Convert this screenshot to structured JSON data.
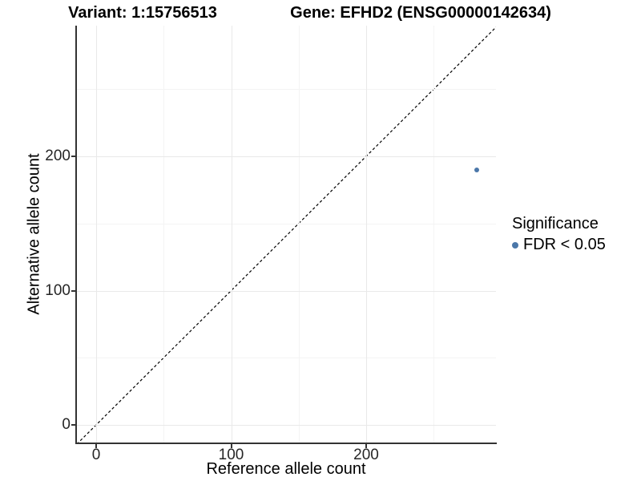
{
  "titles": {
    "variant": "Variant: 1:15756513",
    "gene": "Gene: EFHD2 (ENSG00000142634)"
  },
  "axes": {
    "x": {
      "label": "Reference allele count"
    },
    "y": {
      "label": "Alternative allele count"
    }
  },
  "legend": {
    "title": "Significance",
    "items": [
      {
        "label": "FDR < 0.05",
        "marker": "circle-icon",
        "color": "#4b77a9"
      }
    ]
  },
  "chart_data": {
    "type": "scatter",
    "title": "Variant: 1:15756513 — Gene: EFHD2 (ENSG00000142634)",
    "xlabel": "Reference allele count",
    "ylabel": "Alternative allele count",
    "x_ticks": [
      0,
      100,
      200
    ],
    "y_ticks": [
      0,
      100,
      200
    ],
    "x_minor_gridlines": [
      50,
      150,
      250
    ],
    "y_minor_gridlines": [
      50,
      150,
      250
    ],
    "xlim": [
      -15,
      296
    ],
    "ylim": [
      -14,
      297
    ],
    "grid": true,
    "legend_position": "right",
    "series": [
      {
        "name": "FDR < 0.05",
        "color": "#4b77a9",
        "points": [
          {
            "x": 282,
            "y": 190
          }
        ]
      }
    ],
    "reference_line": {
      "description": "identity line y = x",
      "slope": 1,
      "intercept": 0,
      "style": "dashed",
      "color": "#000000"
    }
  }
}
